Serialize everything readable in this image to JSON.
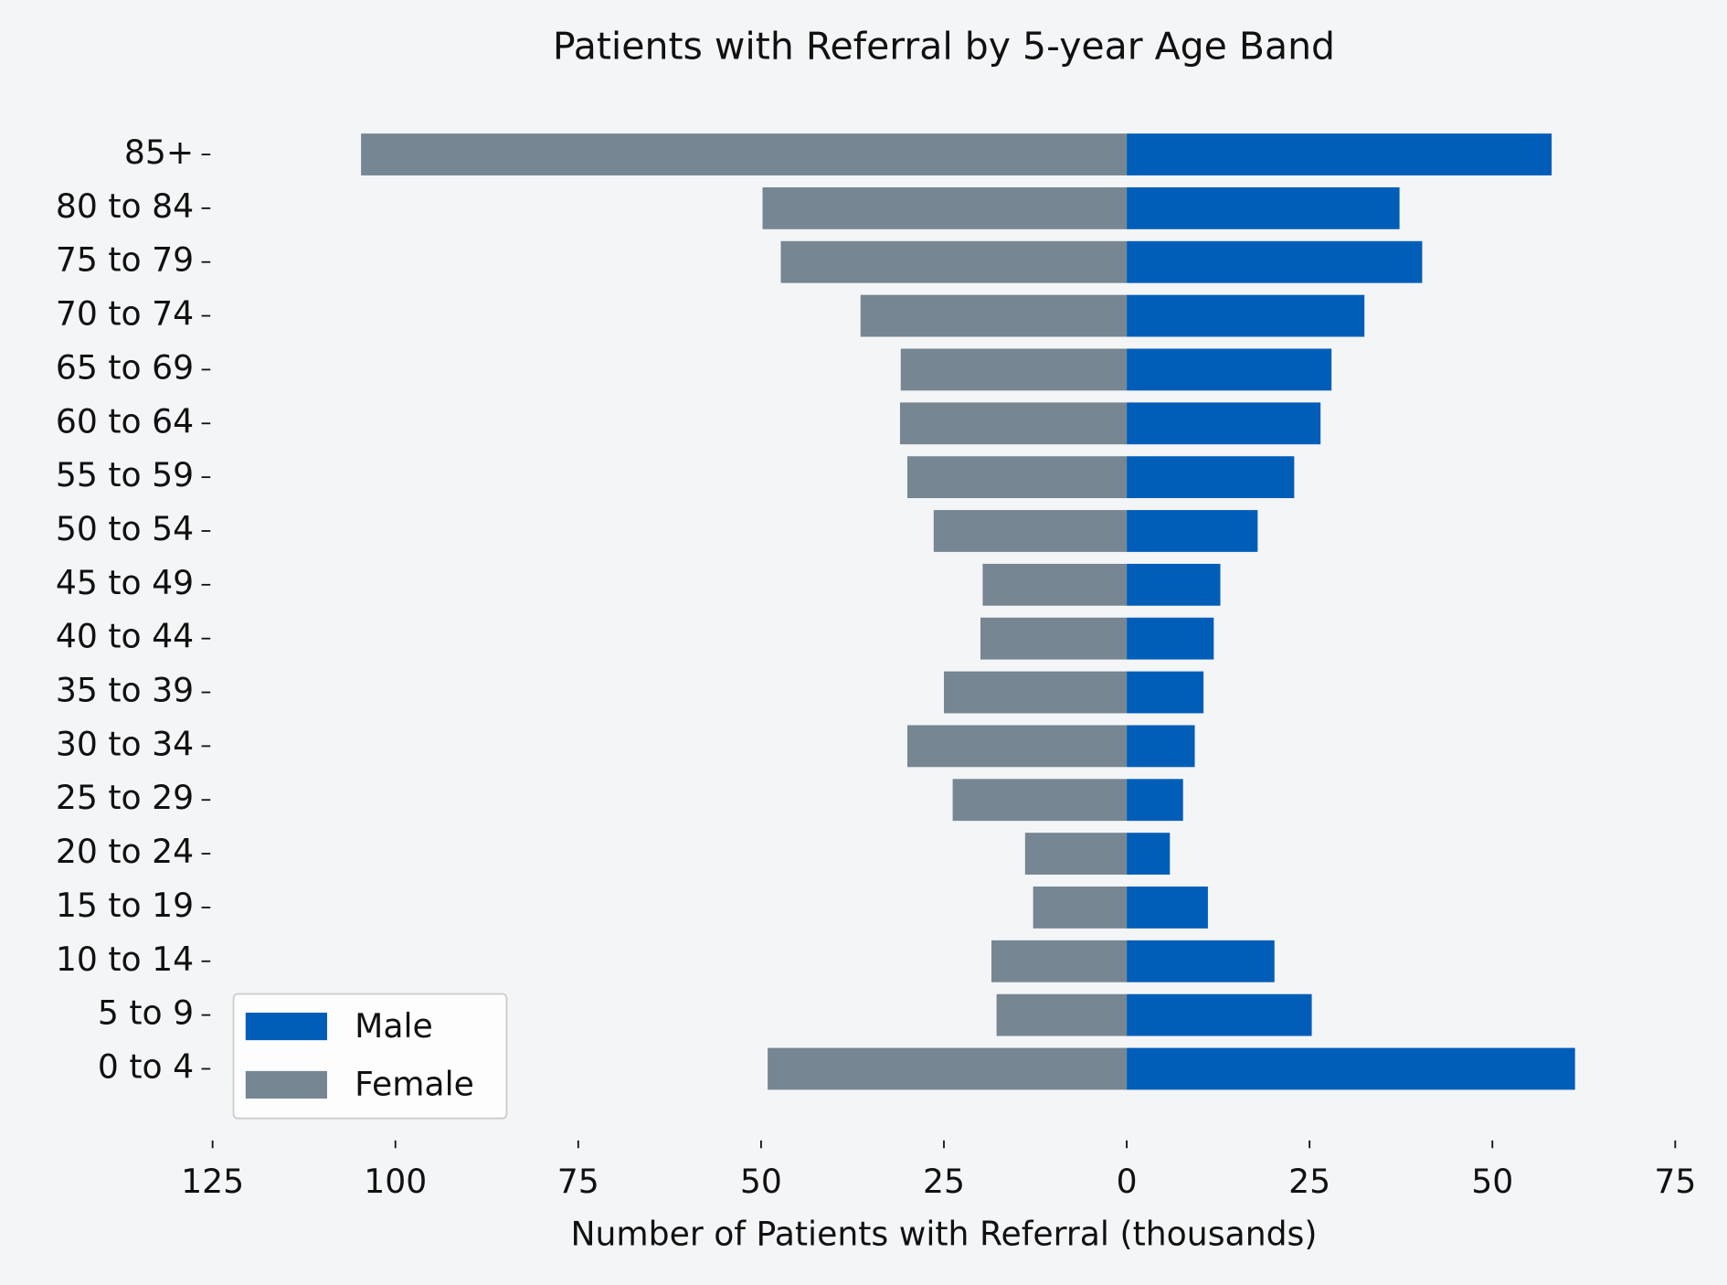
{
  "chart_data": {
    "type": "pyramid",
    "title": "Patients with Referral by 5-year Age Band",
    "x_label": "Number of Patients with Referral (thousands)",
    "categories": [
      "85+",
      "80 to 84",
      "75 to 79",
      "70 to 74",
      "65 to 69",
      "60 to 64",
      "55 to 59",
      "50 to 54",
      "45 to 49",
      "40 to 44",
      "35 to 39",
      "30 to 34",
      "25 to 29",
      "20 to 24",
      "15 to 19",
      "10 to 14",
      "5 to 9",
      "0 to 4"
    ],
    "series": [
      {
        "name": "Male",
        "color": "#005eb8",
        "values": [
          58.1,
          37.3,
          40.4,
          32.5,
          28.0,
          26.5,
          22.9,
          17.9,
          12.8,
          11.9,
          10.5,
          9.3,
          7.7,
          5.9,
          11.1,
          20.2,
          25.3,
          61.3
        ]
      },
      {
        "name": "Female",
        "color": "#768692",
        "values": [
          -104.7,
          -49.8,
          -47.3,
          -36.4,
          -30.9,
          -31.0,
          -30.0,
          -26.4,
          -19.7,
          -20.0,
          -25.0,
          -30.0,
          -23.8,
          -13.9,
          -12.8,
          -18.5,
          -17.8,
          -49.1
        ]
      }
    ],
    "xlim": [
      -125,
      75
    ],
    "xticks": [
      {
        "value": -125,
        "label": "125"
      },
      {
        "value": -100,
        "label": "100"
      },
      {
        "value": -75,
        "label": "75"
      },
      {
        "value": -50,
        "label": "50"
      },
      {
        "value": -25,
        "label": "25"
      },
      0,
      25,
      50,
      75
    ],
    "legend_position": "lower left",
    "grid": false
  }
}
